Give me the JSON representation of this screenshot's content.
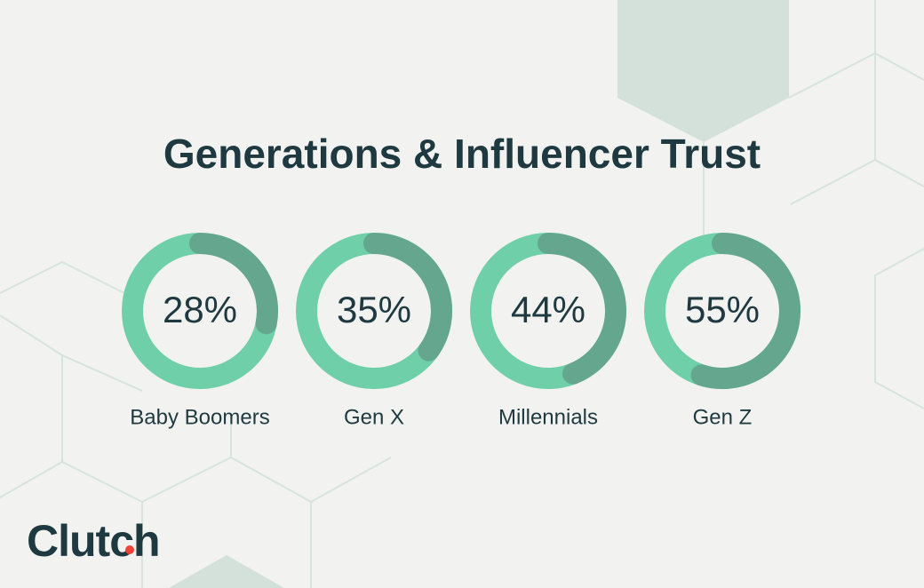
{
  "chart_data": {
    "type": "donut",
    "title": "Generations & Influencer Trust",
    "categories": [
      "Baby Boomers",
      "Gen X",
      "Millennials",
      "Gen Z"
    ],
    "values": [
      28,
      35,
      44,
      55
    ],
    "value_labels": [
      "28%",
      "35%",
      "44%",
      "55%"
    ],
    "color": "#64a78e",
    "track_color": "#6fcfa9"
  },
  "logo": "Clutch"
}
